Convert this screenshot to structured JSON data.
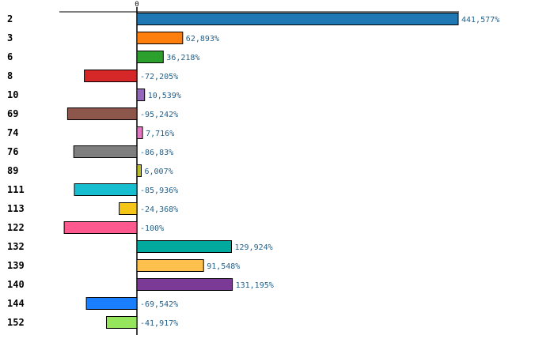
{
  "chart_data": {
    "type": "bar",
    "orientation": "horizontal",
    "title": "",
    "xlabel": "",
    "ylabel": "",
    "x_ticks": [
      "0"
    ],
    "xlim": [
      -120,
      441.577
    ],
    "categories": [
      "2",
      "3",
      "6",
      "8",
      "10",
      "69",
      "74",
      "76",
      "89",
      "111",
      "113",
      "122",
      "132",
      "139",
      "140",
      "144",
      "152"
    ],
    "values": [
      441.577,
      62.893,
      36.218,
      -72.205,
      10.539,
      -95.242,
      7.716,
      -86.83,
      6.007,
      -85.936,
      -24.368,
      -100,
      129.924,
      91.548,
      131.195,
      -69.542,
      -41.917
    ],
    "value_labels": [
      "441,577%",
      "62,893%",
      "36,218%",
      "-72,205%",
      "10,539%",
      "-95,242%",
      "7,716%",
      "-86,83%",
      "6,007%",
      "-85,936%",
      "-24,368%",
      "-100%",
      "129,924%",
      "91,548%",
      "131,195%",
      "-69,542%",
      "-41,917%"
    ],
    "colors": [
      "#1f77b4",
      "#ff7f0e",
      "#2ca02c",
      "#d62728",
      "#9467bd",
      "#8c564b",
      "#e377c2",
      "#7f7f7f",
      "#bcbd22",
      "#17becf",
      "#f5c518",
      "#ff5a8f",
      "#00a99d",
      "#ffc04d",
      "#7b3a96",
      "#1a7fff",
      "#95e55c"
    ],
    "label_color": "#1f5f8b",
    "legend": "none",
    "grid": false
  }
}
